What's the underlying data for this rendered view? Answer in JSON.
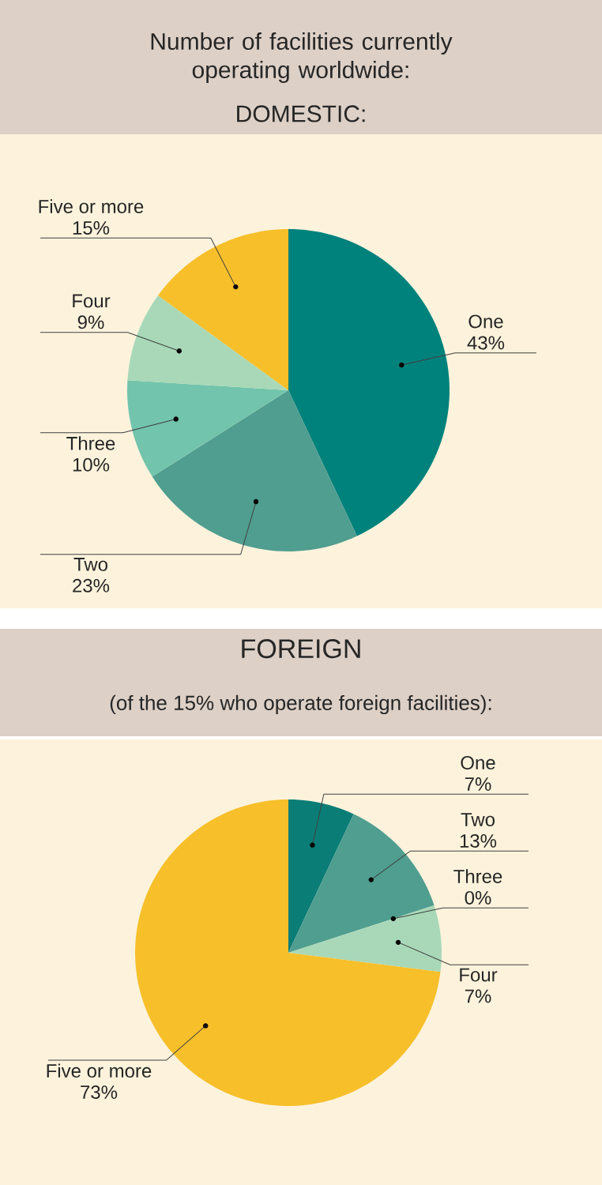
{
  "chart_data": [
    {
      "type": "pie",
      "title": "Number of facilities currently operating worldwide:",
      "subtitle": "DOMESTIC:",
      "categories": [
        "One",
        "Two",
        "Three",
        "Four",
        "Five or more"
      ],
      "values": [
        43,
        23,
        10,
        9,
        15
      ],
      "value_labels": [
        "43%",
        "23%",
        "10%",
        "9%",
        "15%"
      ],
      "colors": [
        "#00827c",
        "#4f9e90",
        "#72c4ac",
        "#a8d8b8",
        "#f7bf2a"
      ]
    },
    {
      "type": "pie",
      "title": "FOREIGN",
      "subtitle": "(of the 15% who operate foreign facilities):",
      "categories": [
        "One",
        "Two",
        "Three",
        "Four",
        "Five or more"
      ],
      "values": [
        7,
        13,
        0,
        7,
        73
      ],
      "value_labels": [
        "7%",
        "13%",
        "0%",
        "7%",
        "73%"
      ],
      "colors": [
        "#0a7d77",
        "#4f9e90",
        "#72c4ac",
        "#a8d8b8",
        "#f7bf2a"
      ]
    }
  ]
}
